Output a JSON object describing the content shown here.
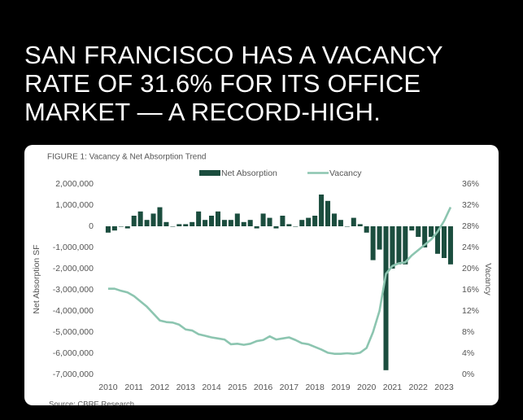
{
  "headline": "SAN FRANCISCO HAS A VACANCY RATE OF 31.6% FOR ITS OFFICE MARKET — A RECORD-HIGH.",
  "chart_data": {
    "type": "combo",
    "title": "FIGURE 1: Vacancy & Net Absorption Trend",
    "ylabel": "Net Absorption SF",
    "y2label": "Vacancy",
    "source": "Source: CBRE Research",
    "x": [
      2010,
      2010.25,
      2010.5,
      2010.75,
      2011,
      2011.25,
      2011.5,
      2011.75,
      2012,
      2012.25,
      2012.5,
      2012.75,
      2013,
      2013.25,
      2013.5,
      2013.75,
      2014,
      2014.25,
      2014.5,
      2014.75,
      2015,
      2015.25,
      2015.5,
      2015.75,
      2016,
      2016.25,
      2016.5,
      2016.75,
      2017,
      2017.25,
      2017.5,
      2017.75,
      2018,
      2018.25,
      2018.5,
      2018.75,
      2019,
      2019.25,
      2019.5,
      2019.75,
      2020,
      2020.25,
      2020.5,
      2020.75,
      2021,
      2021.25,
      2021.5,
      2021.75,
      2022,
      2022.25,
      2022.5,
      2022.75,
      2023,
      2023.25
    ],
    "xlim": [
      2009.75,
      2023.4
    ],
    "xticks": [
      2010,
      2011,
      2012,
      2013,
      2014,
      2015,
      2016,
      2017,
      2018,
      2019,
      2020,
      2021,
      2022,
      2023
    ],
    "ylim": [
      -7000000,
      2000000
    ],
    "yticks": [
      {
        "value": -7000000,
        "label": "-7,000,000"
      },
      {
        "value": -6000000,
        "label": "-6,000,000"
      },
      {
        "value": -5000000,
        "label": "-5,000,000"
      },
      {
        "value": -4000000,
        "label": "-4,000,000"
      },
      {
        "value": -3000000,
        "label": "-3,000,000"
      },
      {
        "value": -2000000,
        "label": "-2,000,000"
      },
      {
        "value": -1000000,
        "label": "-1,000,000"
      },
      0,
      {
        "value": 1000000,
        "label": "1,000,000"
      },
      {
        "value": 2000000,
        "label": "2,000,000"
      }
    ],
    "y2lim": [
      0,
      36
    ],
    "y2ticks": [
      {
        "value": 0,
        "label": "0%"
      },
      {
        "value": 4,
        "label": "4%"
      },
      {
        "value": 8,
        "label": "8%"
      },
      {
        "value": 12,
        "label": "12%"
      },
      {
        "value": 16,
        "label": "16%"
      },
      {
        "value": 20,
        "label": "20%"
      },
      {
        "value": 24,
        "label": "24%"
      },
      {
        "value": 28,
        "label": "28%"
      },
      {
        "value": 32,
        "label": "32%"
      },
      {
        "value": 36,
        "label": "36%"
      }
    ],
    "legend": "top",
    "series": [
      {
        "name": "Net Absorption",
        "type": "bar",
        "color": "#1b4d3e",
        "values": [
          -300000,
          -200000,
          0,
          -100000,
          500000,
          700000,
          300000,
          600000,
          900000,
          200000,
          0,
          100000,
          100000,
          200000,
          700000,
          300000,
          500000,
          700000,
          300000,
          300000,
          600000,
          200000,
          300000,
          -100000,
          600000,
          400000,
          -100000,
          500000,
          100000,
          0,
          300000,
          400000,
          500000,
          1500000,
          1200000,
          600000,
          300000,
          0,
          400000,
          100000,
          -300000,
          -1600000,
          -1100000,
          -6800000,
          -2000000,
          -1800000,
          -1800000,
          -200000,
          -500000,
          -1000000,
          -500000,
          -1300000,
          -1500000,
          -1800000
        ]
      },
      {
        "name": "Vacancy",
        "type": "line",
        "axis": "y2",
        "color": "#8cc5b0",
        "values": [
          16.2,
          16.2,
          15.8,
          15.5,
          14.8,
          13.8,
          12.8,
          11.5,
          10.2,
          9.9,
          9.8,
          9.4,
          8.5,
          8.3,
          7.6,
          7.3,
          7.0,
          6.8,
          6.6,
          5.7,
          5.8,
          5.6,
          5.8,
          6.3,
          6.5,
          7.2,
          6.6,
          6.8,
          7.0,
          6.5,
          5.9,
          5.7,
          5.2,
          4.7,
          4.1,
          3.9,
          3.9,
          4.0,
          3.9,
          4.1,
          5.0,
          8.0,
          12.0,
          19.0,
          20.5,
          21.0,
          21.2,
          22.5,
          23.5,
          24.5,
          25.5,
          27.0,
          29.0,
          31.6
        ]
      }
    ]
  }
}
